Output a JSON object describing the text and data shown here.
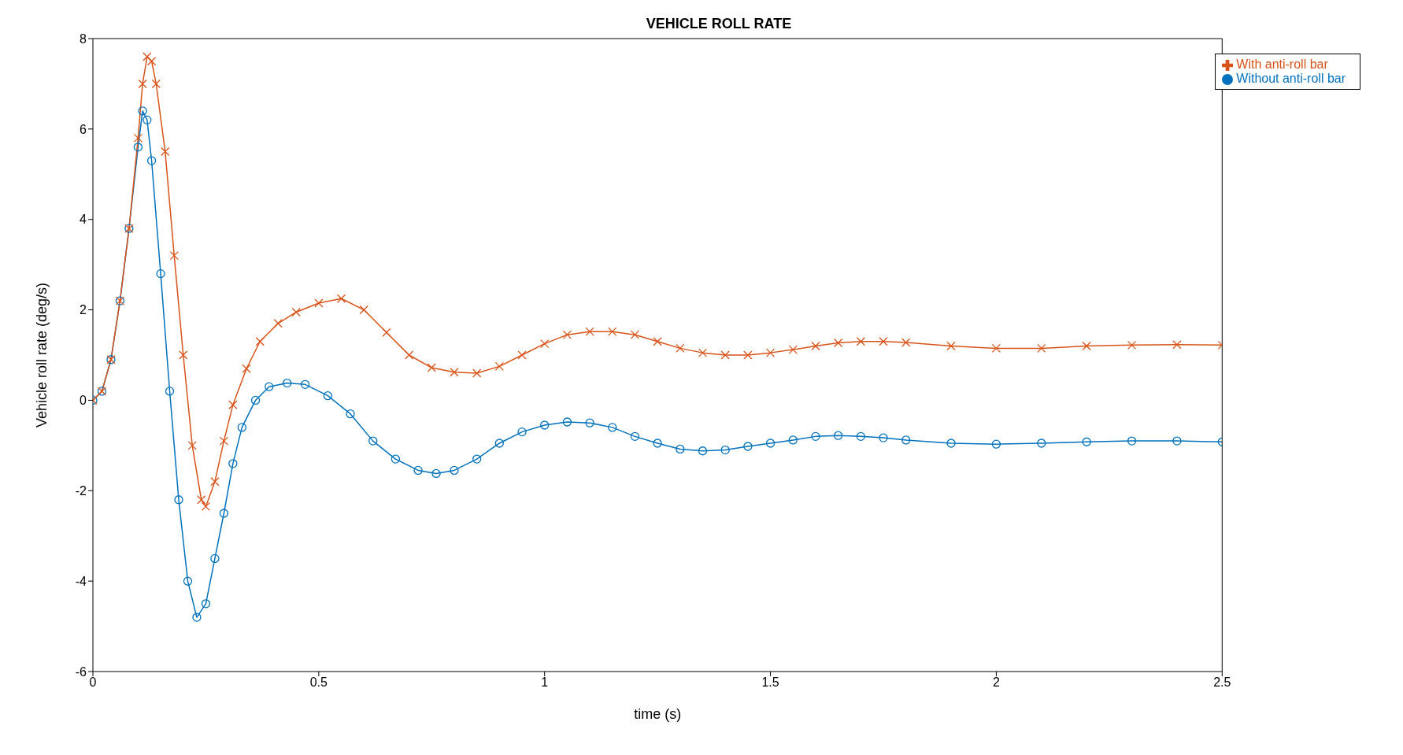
{
  "chart_data": {
    "type": "line",
    "title": "VEHICLE ROLL RATE",
    "xlabel": "time (s)",
    "ylabel": "Vehicle roll rate (deg/s)",
    "xlim": [
      0,
      2.5
    ],
    "xticks": [
      0,
      0.5,
      1,
      1.5,
      2,
      2.5
    ],
    "ylim": [
      -6,
      8
    ],
    "yticks": [
      -6,
      -4,
      -2,
      0,
      2,
      4,
      6,
      8
    ],
    "grid": false,
    "legend": "top right",
    "line_style": "solid",
    "series": [
      {
        "name": "Without anti-roll bar",
        "color": "#0072bd",
        "marker": "circle",
        "x": [
          0,
          0.02,
          0.04,
          0.06,
          0.08,
          0.1,
          0.11,
          0.12,
          0.13,
          0.15,
          0.17,
          0.19,
          0.21,
          0.23,
          0.25,
          0.27,
          0.29,
          0.31,
          0.33,
          0.36,
          0.39,
          0.43,
          0.47,
          0.52,
          0.57,
          0.62,
          0.67,
          0.72,
          0.76,
          0.8,
          0.85,
          0.9,
          0.95,
          1.0,
          1.05,
          1.1,
          1.15,
          1.2,
          1.25,
          1.3,
          1.35,
          1.4,
          1.45,
          1.5,
          1.55,
          1.6,
          1.65,
          1.7,
          1.75,
          1.8,
          1.9,
          2.0,
          2.1,
          2.2,
          2.3,
          2.4,
          2.5
        ],
        "values": [
          0,
          0.2,
          0.9,
          2.2,
          3.8,
          5.6,
          6.4,
          6.2,
          5.3,
          2.8,
          0.2,
          -2.2,
          -4.0,
          -4.8,
          -4.5,
          -3.5,
          -2.5,
          -1.4,
          -0.6,
          0,
          0.3,
          0.38,
          0.35,
          0.1,
          -0.3,
          -0.9,
          -1.3,
          -1.55,
          -1.62,
          -1.55,
          -1.3,
          -0.95,
          -0.7,
          -0.55,
          -0.48,
          -0.5,
          -0.6,
          -0.8,
          -0.95,
          -1.08,
          -1.12,
          -1.1,
          -1.02,
          -0.95,
          -0.88,
          -0.8,
          -0.78,
          -0.8,
          -0.83,
          -0.88,
          -0.95,
          -0.97,
          -0.95,
          -0.92,
          -0.9,
          -0.9,
          -0.92
        ]
      },
      {
        "name": "With anti-roll bar",
        "color": "#d95319",
        "marker": "cross",
        "x": [
          0,
          0.02,
          0.04,
          0.06,
          0.08,
          0.1,
          0.11,
          0.12,
          0.13,
          0.14,
          0.16,
          0.18,
          0.2,
          0.22,
          0.24,
          0.25,
          0.27,
          0.29,
          0.31,
          0.34,
          0.37,
          0.41,
          0.45,
          0.5,
          0.55,
          0.6,
          0.65,
          0.7,
          0.75,
          0.8,
          0.85,
          0.9,
          0.95,
          1.0,
          1.05,
          1.1,
          1.15,
          1.2,
          1.25,
          1.3,
          1.35,
          1.4,
          1.45,
          1.5,
          1.55,
          1.6,
          1.65,
          1.7,
          1.75,
          1.8,
          1.9,
          2.0,
          2.1,
          2.2,
          2.3,
          2.4,
          2.5
        ],
        "values": [
          0,
          0.2,
          0.9,
          2.2,
          3.8,
          5.8,
          7.0,
          7.6,
          7.5,
          7.0,
          5.5,
          3.2,
          1.0,
          -1.0,
          -2.2,
          -2.35,
          -1.8,
          -0.9,
          -0.1,
          0.7,
          1.3,
          1.7,
          1.95,
          2.15,
          2.25,
          2.0,
          1.5,
          1.0,
          0.72,
          0.62,
          0.6,
          0.75,
          1.0,
          1.25,
          1.45,
          1.52,
          1.52,
          1.45,
          1.3,
          1.15,
          1.05,
          1.0,
          1.0,
          1.05,
          1.12,
          1.2,
          1.27,
          1.3,
          1.3,
          1.28,
          1.2,
          1.15,
          1.15,
          1.2,
          1.22,
          1.23,
          1.22
        ]
      }
    ]
  }
}
